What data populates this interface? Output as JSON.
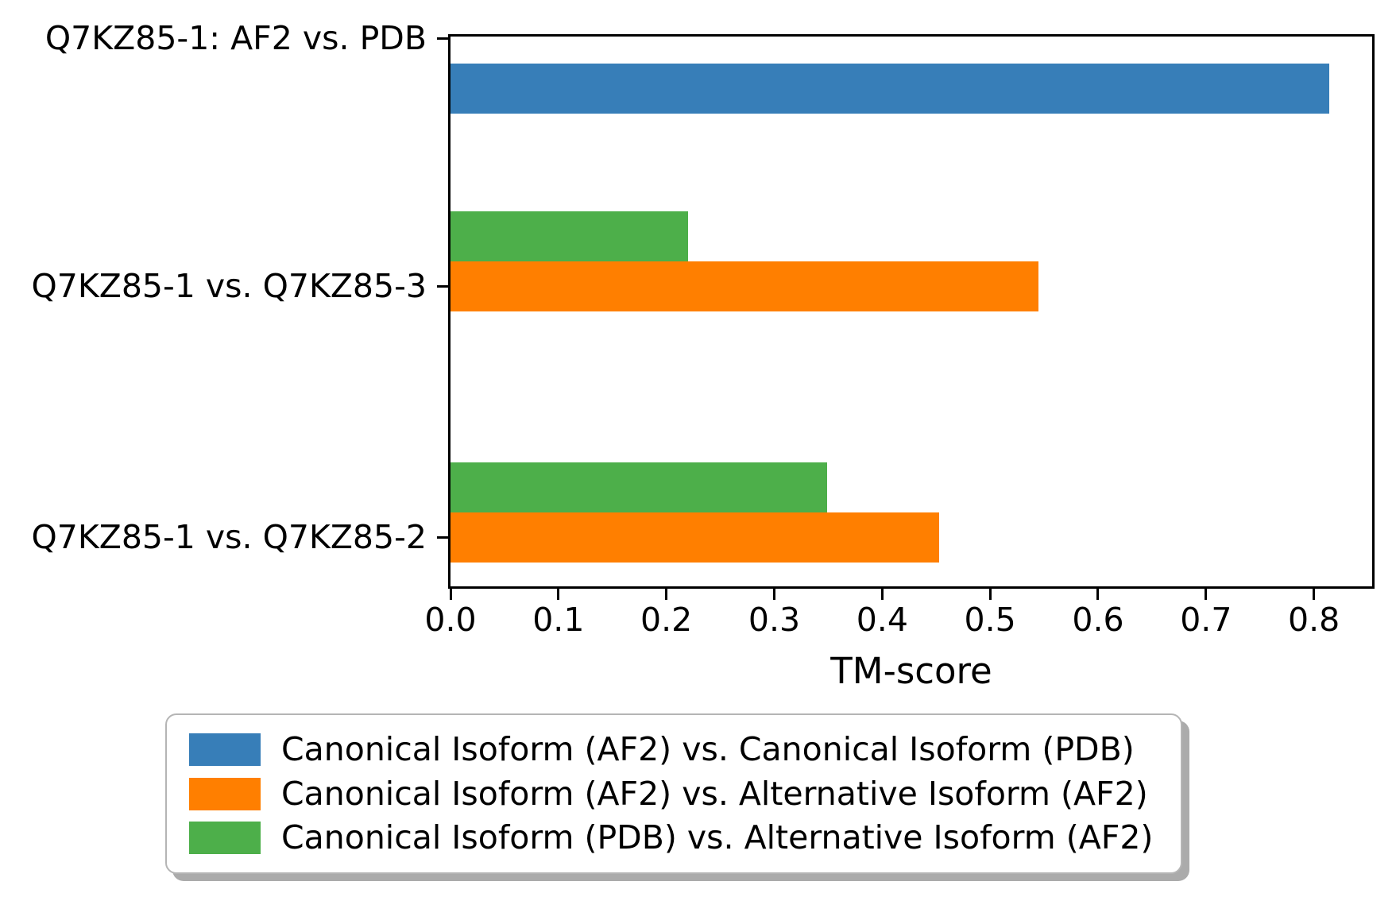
{
  "chart_data": {
    "type": "bar",
    "orientation": "horizontal",
    "title": "",
    "xlabel": "TM-score",
    "xlim": [
      0.0,
      0.854
    ],
    "xticks": [
      0.0,
      0.1,
      0.2,
      0.3,
      0.4,
      0.5,
      0.6,
      0.7,
      0.8
    ],
    "grid": false,
    "legend_position": "bottom",
    "categories": [
      "Q7KZ85-1: AF2 vs. PDB",
      "Q7KZ85-1 vs. Q7KZ85-3",
      "Q7KZ85-1 vs. Q7KZ85-2"
    ],
    "series": [
      {
        "name": "Canonical Isoform (AF2) vs. Canonical Isoform (PDB)",
        "color": "#377eb8",
        "values": [
          0.814,
          null,
          null
        ]
      },
      {
        "name": "Canonical Isoform (AF2) vs. Alternative Isoform (AF2)",
        "color": "#ff7f00",
        "values": [
          null,
          0.545,
          0.453
        ]
      },
      {
        "name": "Canonical Isoform (PDB) vs. Alternative Isoform (AF2)",
        "color": "#4daf4a",
        "values": [
          null,
          0.22,
          0.349
        ]
      }
    ],
    "axis_color": "#000000",
    "background_color": "#ffffff"
  }
}
